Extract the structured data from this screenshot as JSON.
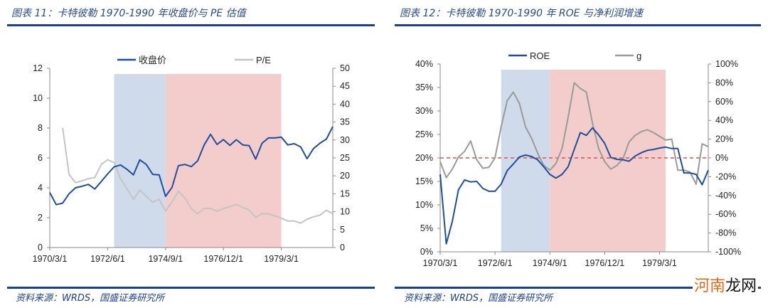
{
  "header": {
    "left_title": "图表 11：卡特彼勒 1970-1990 年收盘价与 PE 估值",
    "right_title": "图表 12：卡特彼勒 1970-1990 年 ROE 与净利润增速"
  },
  "footer": {
    "left_source": "资料来源：WRDS，国盛证券研究所",
    "right_source": "资料来源：WRDS，国盛证券研究所"
  },
  "watermark": {
    "part1": "河南",
    "part2": "龙网",
    "color1": "#e06a1a",
    "color2": "#111111"
  },
  "colors": {
    "blue_line": "#1f4e9c",
    "gray_line": "#b0b0b0",
    "gray_line_2": "#9a9a9a",
    "blue_shade": "#cfdaeb",
    "pink_shade": "#f3cccc",
    "zero_line": "#d9534f",
    "rule": "#1d3f8f"
  },
  "chart_data": [
    {
      "type": "line",
      "x_tick_labels": [
        "1970/3/1",
        "1972/6/1",
        "1974/9/1",
        "1976/12/1",
        "1979/3/1"
      ],
      "x": [
        "1970/3/1",
        "1970/6/1",
        "1970/9/1",
        "1970/12/1",
        "1971/3/1",
        "1971/6/1",
        "1971/9/1",
        "1971/12/1",
        "1972/3/1",
        "1972/6/1",
        "1972/9/1",
        "1972/12/1",
        "1973/3/1",
        "1973/6/1",
        "1973/9/1",
        "1973/12/1",
        "1974/3/1",
        "1974/6/1",
        "1974/9/1",
        "1974/12/1",
        "1975/3/1",
        "1975/6/1",
        "1975/9/1",
        "1975/12/1",
        "1976/3/1",
        "1976/6/1",
        "1976/9/1",
        "1976/12/1",
        "1977/3/1",
        "1977/6/1",
        "1977/9/1",
        "1977/12/1",
        "1978/3/1",
        "1978/6/1",
        "1978/9/1",
        "1978/12/1",
        "1979/3/1",
        "1979/6/1",
        "1979/9/1",
        "1979/12/1",
        "1980/3/1",
        "1980/6/1",
        "1980/9/1",
        "1980/12/1",
        "1981/3/1"
      ],
      "y_left": {
        "range": [
          0,
          12
        ],
        "ticks": [
          "0",
          "2",
          "4",
          "6",
          "8",
          "10",
          "12"
        ]
      },
      "y_right": {
        "range": [
          0,
          50
        ],
        "ticks": [
          "0",
          "5",
          "10",
          "15",
          "20",
          "25",
          "30",
          "35",
          "40",
          "45",
          "50"
        ]
      },
      "legend_position": "top",
      "shaded_periods": [
        {
          "start": "1972/9/1",
          "end": "1974/9/1",
          "color": "blue"
        },
        {
          "start": "1974/9/1",
          "end": "1979/3/1",
          "color": "pink"
        }
      ],
      "series": [
        {
          "name": "收盘价",
          "axis": "left",
          "color": "#1f4e9c",
          "values": [
            3.68,
            2.87,
            2.97,
            3.6,
            4.0,
            4.1,
            4.23,
            3.92,
            4.42,
            4.93,
            5.4,
            5.53,
            5.24,
            4.86,
            5.87,
            5.56,
            4.9,
            4.86,
            3.43,
            4.03,
            5.48,
            5.56,
            5.42,
            5.81,
            6.87,
            7.58,
            6.9,
            7.23,
            6.84,
            7.22,
            6.87,
            6.82,
            5.92,
            6.98,
            7.34,
            7.34,
            7.39,
            6.87,
            6.95,
            6.74,
            5.95,
            6.63,
            6.98,
            7.26,
            8.1
          ]
        },
        {
          "name": "P/E",
          "axis": "right",
          "color": "#c4c4c4",
          "values": [
            null,
            null,
            33.4,
            20.4,
            18.1,
            18.6,
            19.2,
            19.5,
            23.2,
            24.5,
            23.7,
            19.2,
            16.4,
            13.5,
            16.0,
            14.3,
            12.6,
            13.5,
            10.2,
            12.7,
            15.7,
            13.8,
            10.9,
            9.4,
            10.9,
            10.9,
            10.1,
            10.9,
            11.4,
            12.0,
            11.2,
            10.5,
            8.4,
            9.5,
            9.4,
            8.8,
            8.2,
            7.4,
            7.4,
            6.8,
            7.9,
            8.6,
            9.0,
            10.4,
            9.4
          ]
        }
      ]
    },
    {
      "type": "line",
      "x_tick_labels": [
        "1970/3/1",
        "1972/6/1",
        "1974/9/1",
        "1976/12/1",
        "1979/3/1"
      ],
      "x": [
        "1970/3/1",
        "1970/6/1",
        "1970/9/1",
        "1970/12/1",
        "1971/3/1",
        "1971/6/1",
        "1971/9/1",
        "1971/12/1",
        "1972/3/1",
        "1972/6/1",
        "1972/9/1",
        "1972/12/1",
        "1973/3/1",
        "1973/6/1",
        "1973/9/1",
        "1973/12/1",
        "1974/3/1",
        "1974/6/1",
        "1974/9/1",
        "1974/12/1",
        "1975/3/1",
        "1975/6/1",
        "1975/9/1",
        "1975/12/1",
        "1976/3/1",
        "1976/6/1",
        "1976/9/1",
        "1976/12/1",
        "1977/3/1",
        "1977/6/1",
        "1977/9/1",
        "1977/12/1",
        "1978/3/1",
        "1978/6/1",
        "1978/9/1",
        "1978/12/1",
        "1979/3/1",
        "1979/6/1",
        "1979/9/1",
        "1979/12/1",
        "1980/3/1",
        "1980/6/1",
        "1980/9/1",
        "1980/12/1",
        "1981/3/1"
      ],
      "y_left": {
        "range": [
          0,
          40
        ],
        "ticks": [
          "0%",
          "5%",
          "10%",
          "15%",
          "20%",
          "25%",
          "30%",
          "35%",
          "40%"
        ]
      },
      "y_right": {
        "range": [
          -100,
          100
        ],
        "ticks": [
          "-100%",
          "-80%",
          "-60%",
          "-40%",
          "-20%",
          "0%",
          "20%",
          "40%",
          "60%",
          "80%",
          "100%"
        ]
      },
      "legend_position": "top",
      "reference_line": {
        "axis": "right",
        "value": 0,
        "style": "dashed",
        "color": "#d9534f"
      },
      "shaded_periods": [
        {
          "start": "1972/9/1",
          "end": "1974/9/1",
          "color": "blue"
        },
        {
          "start": "1974/9/1",
          "end": "1979/6/1",
          "color": "pink"
        }
      ],
      "series": [
        {
          "name": "ROE",
          "axis": "left",
          "unit": "%",
          "color": "#1f4e9c",
          "values": [
            16.5,
            1.7,
            6.5,
            13.2,
            15.3,
            14.9,
            15.0,
            13.5,
            12.9,
            12.9,
            14.4,
            17.3,
            18.7,
            20.2,
            20.6,
            20.3,
            19.6,
            18.1,
            16.5,
            15.7,
            16.5,
            18.1,
            21.8,
            25.4,
            24.8,
            26.4,
            24.9,
            23.1,
            20.1,
            19.7,
            19.6,
            19.3,
            20.4,
            21.1,
            21.6,
            21.8,
            22.1,
            22.3,
            22.0,
            22.0,
            16.8,
            16.8,
            16.5,
            14.3,
            17.4
          ]
        },
        {
          "name": "g",
          "axis": "right",
          "unit": "%",
          "color": "#9a9a9a",
          "values": [
            -4,
            -21,
            -12,
            1,
            7,
            18,
            -2,
            -11,
            -10,
            0,
            33,
            61,
            70,
            58,
            33,
            21,
            5,
            -8,
            -13,
            -6,
            10,
            43,
            80,
            74,
            70,
            37,
            10,
            -4,
            -12,
            -8,
            -1,
            17,
            24,
            28,
            30,
            27,
            23,
            19,
            20,
            -13,
            -13,
            -15,
            -28,
            15,
            12
          ]
        }
      ]
    }
  ]
}
